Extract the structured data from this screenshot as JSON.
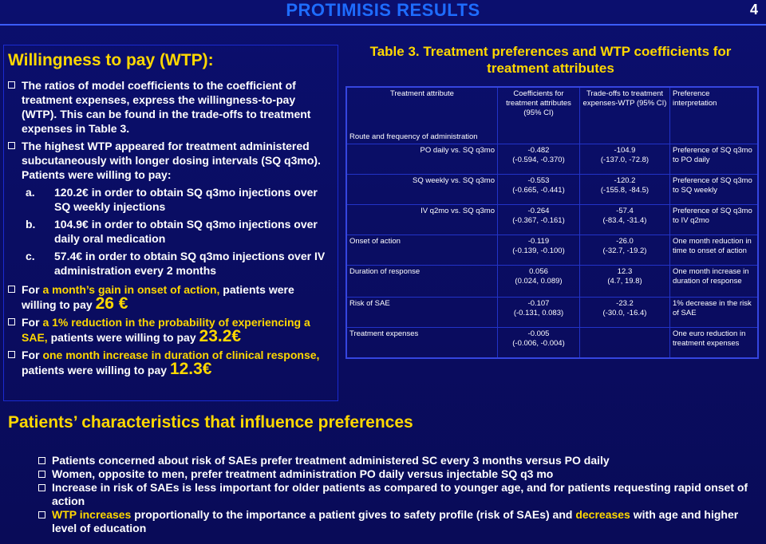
{
  "header": {
    "title": "PROTIMISIS RESULTS",
    "page_number": "4"
  },
  "left": {
    "heading": "Willingness to pay (WTP):",
    "bullet1": "The ratios of model coefficients to the coefficient of treatment expenses, express the willingness-to-pay (WTP). This can be found in the trade-offs to treatment expenses in Table 3.",
    "bullet2": "The highest WTP appeared for treatment administered subcutaneously with longer dosing intervals (SQ q3mo). Patients were willing to pay:",
    "a_letter": "a.",
    "a_text": "120.2€ in order to obtain SQ q3mo injections over SQ weekly injections",
    "b_letter": "b.",
    "b_text": "104.9€ in order to obtain SQ q3mo injections over daily oral medication",
    "c_letter": "c.",
    "c_text": "57.4€ in order to obtain SQ q3mo injections over IV administration every 2 months",
    "m1_pre": "For ",
    "m1_hl": "a month’s gain in onset of action,",
    "m1_post": " patients were willing to pay ",
    "m1_val": "26 €",
    "m2_pre": "For ",
    "m2_hl": "a 1% reduction in the probability of experiencing a SAE,",
    "m2_post": " patients were willing to pay ",
    "m2_val": "23.2€",
    "m3_pre": "For ",
    "m3_hl": "one month increase in duration of clinical response,",
    "m3_post": " patients were willing to pay ",
    "m3_val": "12.3€"
  },
  "table": {
    "caption": "Table 3. Treatment preferences and WTP coefficients for treatment attributes",
    "headers": [
      "Treatment attribute",
      "Coefficients for treatment attributes (95% CI)",
      "Trade-offs to treatment expenses-WTP (95% CI)",
      "Preference interpretation"
    ],
    "group_label": "Route and frequency of administration",
    "rows": [
      {
        "attr": "PO daily vs. SQ q3mo",
        "coef": "-0.482",
        "coef_ci": "(-0.594, -0.370)",
        "wtp": "-104.9",
        "wtp_ci": "(-137.0, -72.8)",
        "interp": "Preference of SQ q3mo to PO daily"
      },
      {
        "attr": "SQ weekly vs. SQ q3mo",
        "coef": "-0.553",
        "coef_ci": "(-0.665, -0.441)",
        "wtp": "-120.2",
        "wtp_ci": "(-155.8, -84.5)",
        "interp": "Preference of SQ q3mo to SQ weekly"
      },
      {
        "attr": "IV q2mo vs. SQ q3mo",
        "coef": "-0.264",
        "coef_ci": "(-0.367, -0.161)",
        "wtp": "-57.4",
        "wtp_ci": "(-83.4, -31.4)",
        "interp": "Preference of SQ q3mo to IV q2mo"
      },
      {
        "attr": "Onset of action",
        "coef": "-0.119",
        "coef_ci": "(-0.139, -0.100)",
        "wtp": "-26.0",
        "wtp_ci": "(-32.7, -19.2)",
        "interp": "One month reduction in time to onset of action"
      },
      {
        "attr": "Duration of response",
        "coef": "0.056",
        "coef_ci": "(0.024, 0.089)",
        "wtp": "12.3",
        "wtp_ci": "(4.7, 19.8)",
        "interp": "One month increase in duration of response"
      },
      {
        "attr": "Risk of SAE",
        "coef": "-0.107",
        "coef_ci": "(-0.131, 0.083)",
        "wtp": "-23.2",
        "wtp_ci": "(-30.0, -16.4)",
        "interp": "1% decrease in the risk of SAE"
      },
      {
        "attr": "Treatment expenses",
        "coef": "-0.005",
        "coef_ci": "(-0.006, -0.004)",
        "wtp": "",
        "wtp_ci": "",
        "interp": "One euro reduction in treatment expenses"
      }
    ]
  },
  "bottom": {
    "heading": "Patients’ characteristics that influence preferences",
    "b1": "Patients concerned about risk of SAEs prefer treatment administered SC every 3 months versus PO daily",
    "b2": "Women, opposite to men, prefer treatment administration PO daily versus injectable SQ q3 mo",
    "b3": "Increase in risk of SAEs is less important for older patients as compared to younger age, and for patients requesting rapid onset of action",
    "b4_hl1": "WTP increases",
    "b4_mid": " proportionally to the importance a patient gives to safety profile (risk of SAEs) and ",
    "b4_hl2": "decreases",
    "b4_end": " with age and higher level of education"
  },
  "colors": {
    "background": "#0a0d63",
    "title": "#1e6cff",
    "accent": "#ffd800",
    "border": "#3545e0"
  }
}
